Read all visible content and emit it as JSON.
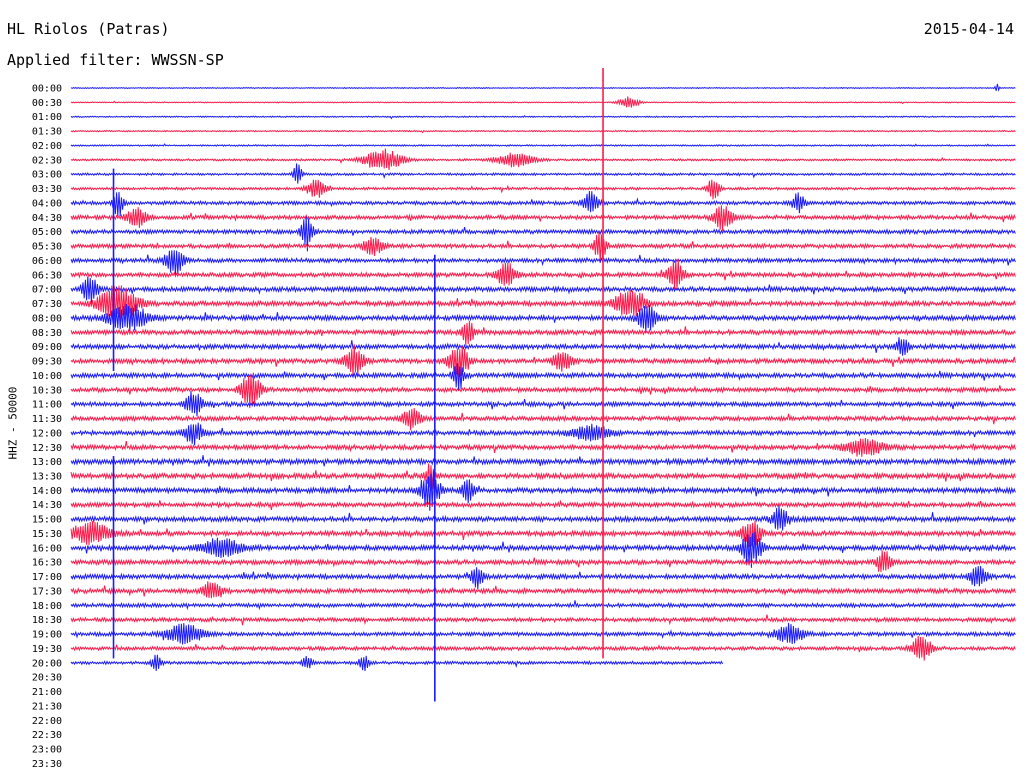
{
  "header": {
    "station": "HL Riolos (Patras)",
    "date": "2015-04-14",
    "filter": "Applied filter: WWSSN-SP",
    "channel": "HHZ - 50000"
  },
  "chart_data": {
    "type": "line",
    "title": "HL Riolos (Patras)",
    "subtitle": "Applied filter: WWSSN-SP",
    "ylabel": "HHZ - 50000",
    "date": "2015-04-14",
    "trace_interval_minutes": 30,
    "trace_colors": [
      "#1a1aff",
      "#ff1a4a"
    ],
    "rows": [
      "00:00",
      "00:30",
      "01:00",
      "01:30",
      "02:00",
      "02:30",
      "03:00",
      "03:30",
      "04:00",
      "04:30",
      "05:00",
      "05:30",
      "06:00",
      "06:30",
      "07:00",
      "07:30",
      "08:00",
      "08:30",
      "09:00",
      "09:30",
      "10:00",
      "10:30",
      "11:00",
      "11:30",
      "12:00",
      "12:30",
      "13:00",
      "13:30",
      "14:00",
      "14:30",
      "15:00",
      "15:30",
      "16:00",
      "16:30",
      "17:00",
      "17:30",
      "18:00",
      "18:30",
      "19:00",
      "19:30",
      "20:00",
      "20:30",
      "21:00",
      "21:30",
      "22:00",
      "22:30",
      "23:00",
      "23:30"
    ],
    "active_rows": 41,
    "last_row_end_fraction": 0.69,
    "row_noise_level": [
      0.4,
      0.4,
      0.5,
      0.5,
      0.6,
      0.8,
      0.9,
      1.0,
      1.4,
      1.6,
      1.6,
      1.6,
      1.6,
      1.7,
      1.8,
      1.9,
      1.9,
      1.8,
      1.8,
      1.8,
      1.8,
      1.7,
      1.7,
      1.7,
      1.7,
      1.8,
      2.0,
      2.0,
      2.0,
      1.8,
      1.9,
      1.9,
      1.9,
      1.8,
      1.8,
      1.8,
      1.5,
      1.5,
      1.5,
      1.4,
      1.2
    ],
    "events": [
      {
        "row": 0,
        "t": 0.98,
        "amp": 6,
        "width": 0.002
      },
      {
        "row": 1,
        "t": 0.59,
        "amp": 6,
        "width": 0.01
      },
      {
        "row": 5,
        "t": 0.33,
        "amp": 11,
        "width": 0.02
      },
      {
        "row": 5,
        "t": 0.47,
        "amp": 7,
        "width": 0.02
      },
      {
        "row": 6,
        "t": 0.24,
        "amp": 16,
        "width": 0.004
      },
      {
        "row": 7,
        "t": 0.26,
        "amp": 10,
        "width": 0.01
      },
      {
        "row": 7,
        "t": 0.68,
        "amp": 12,
        "width": 0.006
      },
      {
        "row": 8,
        "t": 0.05,
        "amp": 14,
        "width": 0.005
      },
      {
        "row": 8,
        "t": 0.55,
        "amp": 12,
        "width": 0.008
      },
      {
        "row": 8,
        "t": 0.77,
        "amp": 11,
        "width": 0.006
      },
      {
        "row": 9,
        "t": 0.07,
        "amp": 10,
        "width": 0.01
      },
      {
        "row": 9,
        "t": 0.69,
        "amp": 14,
        "width": 0.01
      },
      {
        "row": 10,
        "t": 0.25,
        "amp": 18,
        "width": 0.006
      },
      {
        "row": 11,
        "t": 0.32,
        "amp": 10,
        "width": 0.01
      },
      {
        "row": 11,
        "t": 0.56,
        "amp": 16,
        "width": 0.006
      },
      {
        "row": 12,
        "t": 0.11,
        "amp": 14,
        "width": 0.01
      },
      {
        "row": 13,
        "t": 0.46,
        "amp": 12,
        "width": 0.01
      },
      {
        "row": 13,
        "t": 0.64,
        "amp": 18,
        "width": 0.008
      },
      {
        "row": 14,
        "t": 0.02,
        "amp": 14,
        "width": 0.008
      },
      {
        "row": 15,
        "t": 0.05,
        "amp": 18,
        "width": 0.02
      },
      {
        "row": 15,
        "t": 0.59,
        "amp": 16,
        "width": 0.015
      },
      {
        "row": 16,
        "t": 0.06,
        "amp": 14,
        "width": 0.02
      },
      {
        "row": 16,
        "t": 0.61,
        "amp": 14,
        "width": 0.01
      },
      {
        "row": 17,
        "t": 0.42,
        "amp": 14,
        "width": 0.006
      },
      {
        "row": 18,
        "t": 0.88,
        "amp": 12,
        "width": 0.006
      },
      {
        "row": 19,
        "t": 0.3,
        "amp": 16,
        "width": 0.01
      },
      {
        "row": 19,
        "t": 0.41,
        "amp": 18,
        "width": 0.01
      },
      {
        "row": 19,
        "t": 0.52,
        "amp": 10,
        "width": 0.01
      },
      {
        "row": 20,
        "t": 0.41,
        "amp": 14,
        "width": 0.006
      },
      {
        "row": 21,
        "t": 0.19,
        "amp": 18,
        "width": 0.01
      },
      {
        "row": 22,
        "t": 0.13,
        "amp": 14,
        "width": 0.008
      },
      {
        "row": 23,
        "t": 0.36,
        "amp": 10,
        "width": 0.01
      },
      {
        "row": 24,
        "t": 0.13,
        "amp": 12,
        "width": 0.01
      },
      {
        "row": 24,
        "t": 0.55,
        "amp": 8,
        "width": 0.02
      },
      {
        "row": 25,
        "t": 0.84,
        "amp": 9,
        "width": 0.02
      },
      {
        "row": 27,
        "t": 0.38,
        "amp": 14,
        "width": 0.005
      },
      {
        "row": 28,
        "t": 0.38,
        "amp": 20,
        "width": 0.01
      },
      {
        "row": 28,
        "t": 0.42,
        "amp": 12,
        "width": 0.006
      },
      {
        "row": 30,
        "t": 0.75,
        "amp": 14,
        "width": 0.008
      },
      {
        "row": 31,
        "t": 0.02,
        "amp": 12,
        "width": 0.02
      },
      {
        "row": 31,
        "t": 0.72,
        "amp": 14,
        "width": 0.01
      },
      {
        "row": 32,
        "t": 0.72,
        "amp": 20,
        "width": 0.01
      },
      {
        "row": 32,
        "t": 0.16,
        "amp": 10,
        "width": 0.02
      },
      {
        "row": 33,
        "t": 0.86,
        "amp": 12,
        "width": 0.008
      },
      {
        "row": 34,
        "t": 0.43,
        "amp": 12,
        "width": 0.006
      },
      {
        "row": 34,
        "t": 0.96,
        "amp": 12,
        "width": 0.008
      },
      {
        "row": 35,
        "t": 0.15,
        "amp": 10,
        "width": 0.01
      },
      {
        "row": 38,
        "t": 0.12,
        "amp": 10,
        "width": 0.02
      },
      {
        "row": 38,
        "t": 0.76,
        "amp": 10,
        "width": 0.015
      },
      {
        "row": 39,
        "t": 0.9,
        "amp": 14,
        "width": 0.01
      },
      {
        "row": 40,
        "t": 0.09,
        "amp": 8,
        "width": 0.005
      },
      {
        "row": 40,
        "t": 0.25,
        "amp": 8,
        "width": 0.005
      },
      {
        "row": 40,
        "t": 0.31,
        "amp": 8,
        "width": 0.005
      }
    ],
    "spikes": [
      {
        "t": 0.563,
        "row_start": 0,
        "row_end": 39,
        "color": "#ff1a4a"
      },
      {
        "t": 0.045,
        "row_start": 7,
        "row_end": 19,
        "color": "#1a1aff"
      },
      {
        "t": 0.045,
        "row_start": 27,
        "row_end": 39,
        "color": "#1a1aff"
      },
      {
        "t": 0.385,
        "row_start": 13,
        "row_end": 42,
        "color": "#1a1aff"
      }
    ]
  }
}
